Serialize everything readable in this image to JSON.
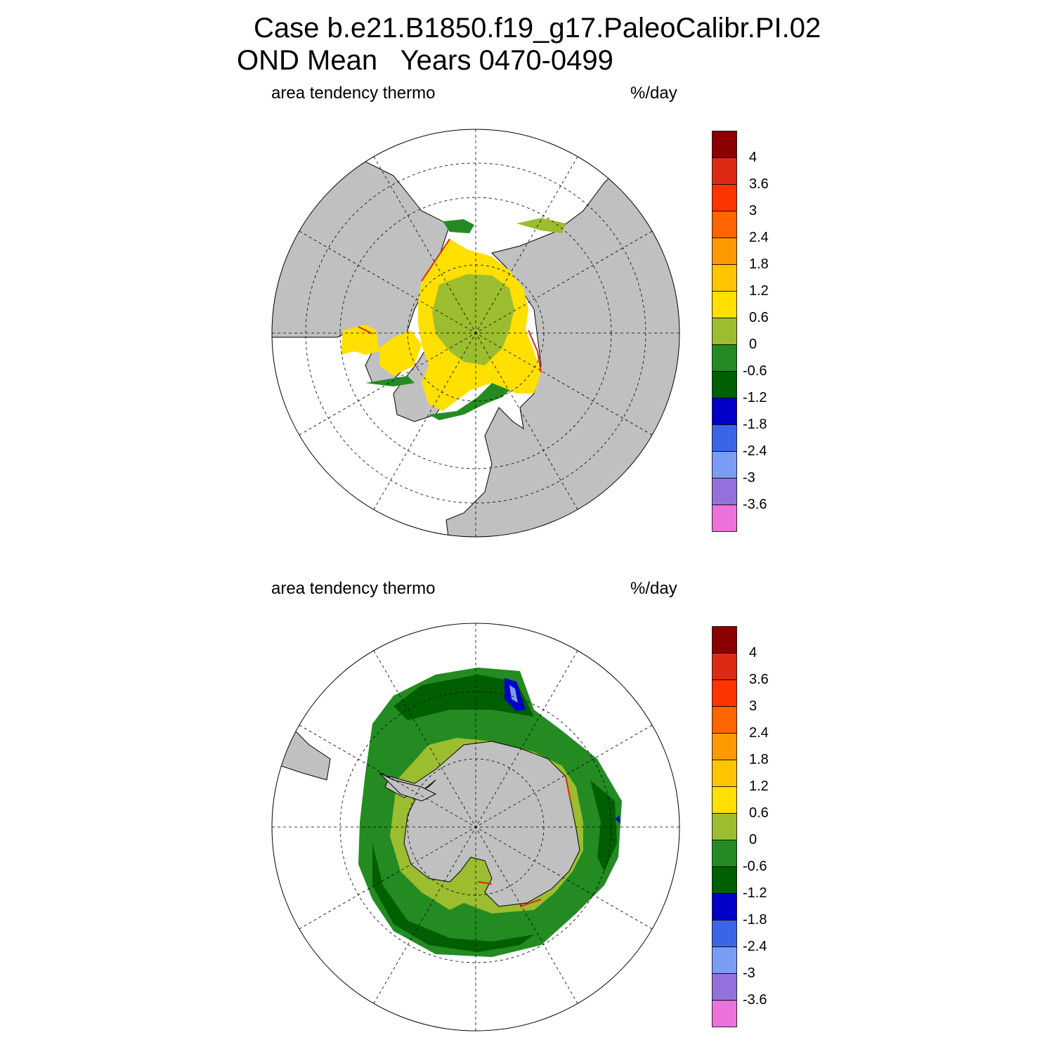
{
  "figure": {
    "title_line1": "Case b.e21.B1850.f19_g17.PaleoCalibr.PI.02",
    "title_line2": "OND Mean   Years 0470-0499"
  },
  "panels": [
    {
      "id": "nh",
      "hemisphere": "north",
      "left_label": "area tendency thermo",
      "right_label": "%/day"
    },
    {
      "id": "sh",
      "hemisphere": "south",
      "left_label": "area tendency thermo",
      "right_label": "%/day"
    }
  ],
  "colorbar": {
    "labels": [
      "4",
      "3.6",
      "3",
      "2.4",
      "1.8",
      "1.2",
      "0.6",
      "0",
      "-0.6",
      "-1.2",
      "-1.8",
      "-2.4",
      "-3",
      "-3.6"
    ],
    "colors": [
      "#8b0000",
      "#dd2a12",
      "#ff3300",
      "#ff6600",
      "#ff9900",
      "#ffc400",
      "#ffe000",
      "#9bbd2f",
      "#238b22",
      "#005f00",
      "#0000c8",
      "#3c64e6",
      "#7a9cf5",
      "#9370db",
      "#ee70dd"
    ]
  },
  "colors": {
    "land": "#c0c0c0",
    "ocean": "#ffffff",
    "grid": "#000000"
  }
}
